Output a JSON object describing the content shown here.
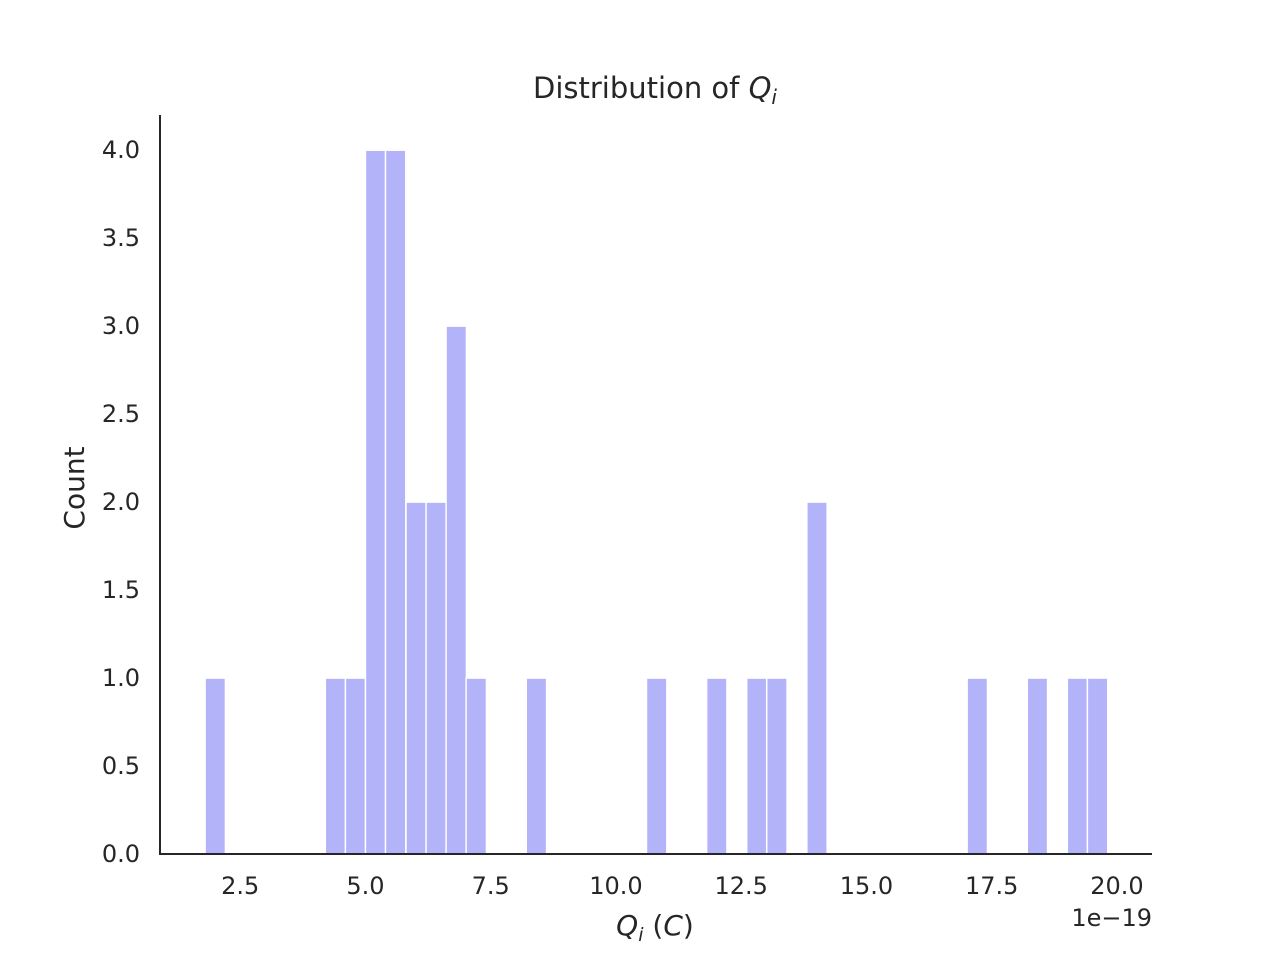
{
  "chart_data": {
    "type": "bar",
    "title_prefix": "Distribution of ",
    "title_math": "Q",
    "title_sub": "i",
    "xlabel_math": "Q",
    "xlabel_sub": "i",
    "xlabel_unit": "C",
    "ylabel": "Count",
    "x_offset_text": "1e−19",
    "x_scale": "1e-19",
    "bin_width": 0.40625,
    "bar_color": "#b3b3fa",
    "xlim": [
      0.9,
      20.7
    ],
    "ylim": [
      0,
      4.2
    ],
    "x_ticks": [
      2.5,
      5.0,
      7.5,
      10.0,
      12.5,
      15.0,
      17.5,
      20.0
    ],
    "x_tick_labels": [
      "2.5",
      "5.0",
      "7.5",
      "10.0",
      "12.5",
      "15.0",
      "17.5",
      "20.0"
    ],
    "y_ticks": [
      0.0,
      0.5,
      1.0,
      1.5,
      2.0,
      2.5,
      3.0,
      3.5,
      4.0
    ],
    "y_tick_labels": [
      "0.0",
      "0.5",
      "1.0",
      "1.5",
      "2.0",
      "2.5",
      "3.0",
      "3.5",
      "4.0"
    ],
    "bins": [
      {
        "x_start": 1.8,
        "count": 1
      },
      {
        "x_start": 4.2,
        "count": 1
      },
      {
        "x_start": 4.6,
        "count": 1
      },
      {
        "x_start": 5.0,
        "count": 4
      },
      {
        "x_start": 5.4,
        "count": 4
      },
      {
        "x_start": 5.81,
        "count": 2
      },
      {
        "x_start": 6.21,
        "count": 2
      },
      {
        "x_start": 6.61,
        "count": 3
      },
      {
        "x_start": 7.01,
        "count": 1
      },
      {
        "x_start": 8.21,
        "count": 1
      },
      {
        "x_start": 10.61,
        "count": 1
      },
      {
        "x_start": 11.81,
        "count": 1
      },
      {
        "x_start": 12.61,
        "count": 1
      },
      {
        "x_start": 13.01,
        "count": 1
      },
      {
        "x_start": 13.81,
        "count": 2
      },
      {
        "x_start": 17.01,
        "count": 1
      },
      {
        "x_start": 18.21,
        "count": 1
      },
      {
        "x_start": 19.01,
        "count": 1
      },
      {
        "x_start": 19.41,
        "count": 1
      }
    ]
  }
}
